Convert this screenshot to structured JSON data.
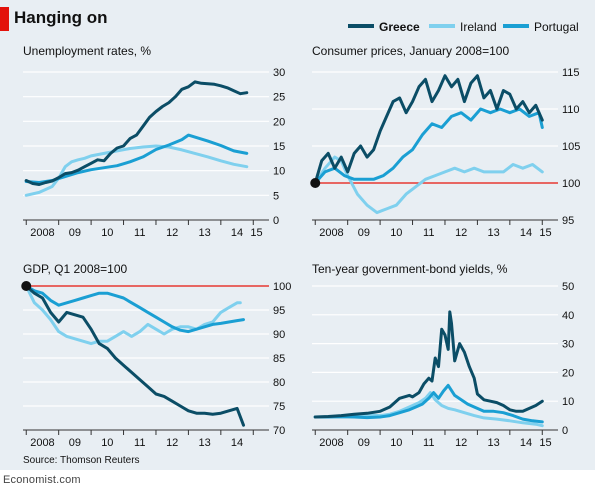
{
  "title": "Hanging on",
  "source": "Source: Thomson Reuters",
  "footer": "Economist.com",
  "colors": {
    "greece": "#0b4d66",
    "ireland": "#7fd0ee",
    "portugal": "#1a9fd3",
    "reference": "#e3120b",
    "red_tag": "#e3120b",
    "background": "#e8eef3"
  },
  "legend": [
    {
      "name": "Greece",
      "color": "#0b4d66",
      "bold": true
    },
    {
      "name": "Ireland",
      "color": "#7fd0ee",
      "bold": false
    },
    {
      "name": "Portugal",
      "color": "#1a9fd3",
      "bold": false
    }
  ],
  "chart_data": [
    {
      "type": "line",
      "title": "Unemployment rates, %",
      "xlim": [
        2007.9,
        2015.3
      ],
      "ylim": [
        0,
        30
      ],
      "yticks": [
        0,
        5,
        10,
        15,
        20,
        25,
        30
      ],
      "xticks": [
        {
          "x": 2008.5,
          "label": "2008"
        },
        {
          "x": 2009.5,
          "label": "09"
        },
        {
          "x": 2010.5,
          "label": "10"
        },
        {
          "x": 2011.5,
          "label": "11"
        },
        {
          "x": 2012.5,
          "label": "12"
        },
        {
          "x": 2013.5,
          "label": "13"
        },
        {
          "x": 2014.5,
          "label": "14"
        },
        {
          "x": 2015.1,
          "label": "15"
        }
      ],
      "grid": true,
      "series": [
        {
          "name": "Greece",
          "x": [
            2008.0,
            2008.2,
            2008.4,
            2008.6,
            2008.8,
            2009.0,
            2009.2,
            2009.4,
            2009.6,
            2009.8,
            2010.0,
            2010.2,
            2010.4,
            2010.6,
            2010.8,
            2011.0,
            2011.2,
            2011.4,
            2011.6,
            2011.8,
            2012.0,
            2012.2,
            2012.4,
            2012.6,
            2012.8,
            2013.0,
            2013.2,
            2013.4,
            2013.6,
            2013.8,
            2014.0,
            2014.2,
            2014.4,
            2014.6,
            2014.8
          ],
          "y": [
            8.0,
            7.4,
            7.2,
            7.6,
            7.9,
            8.6,
            9.4,
            9.6,
            10.1,
            10.8,
            11.5,
            12.2,
            12.0,
            13.5,
            14.6,
            15.0,
            16.5,
            17.2,
            19.0,
            20.8,
            22.0,
            23.0,
            23.8,
            25.0,
            26.5,
            27.0,
            28.0,
            27.7,
            27.6,
            27.5,
            27.2,
            26.8,
            26.2,
            25.6,
            25.8
          ]
        },
        {
          "name": "Ireland",
          "x": [
            2008.0,
            2008.4,
            2008.8,
            2009.0,
            2009.2,
            2009.4,
            2009.6,
            2009.8,
            2010.0,
            2010.4,
            2010.8,
            2011.2,
            2011.6,
            2012.0,
            2012.4,
            2012.8,
            2013.2,
            2013.6,
            2014.0,
            2014.4,
            2014.8
          ],
          "y": [
            5.0,
            5.6,
            6.8,
            8.5,
            10.8,
            11.8,
            12.2,
            12.5,
            13.0,
            13.5,
            14.0,
            14.5,
            14.8,
            15.0,
            14.8,
            14.2,
            13.5,
            12.8,
            12.0,
            11.3,
            10.8
          ]
        },
        {
          "name": "Portugal",
          "x": [
            2008.0,
            2008.4,
            2008.8,
            2009.2,
            2009.6,
            2010.0,
            2010.4,
            2010.8,
            2011.2,
            2011.6,
            2012.0,
            2012.4,
            2012.8,
            2013.0,
            2013.2,
            2013.6,
            2014.0,
            2014.4,
            2014.8
          ],
          "y": [
            7.8,
            7.6,
            8.0,
            8.8,
            9.6,
            10.2,
            10.6,
            11.0,
            11.8,
            12.8,
            14.3,
            15.2,
            16.3,
            17.2,
            16.8,
            16.0,
            15.1,
            14.0,
            13.5
          ]
        }
      ]
    },
    {
      "type": "line",
      "title": "Consumer prices, January 2008=100",
      "xlim": [
        2007.9,
        2015.3
      ],
      "ylim": [
        95,
        115
      ],
      "yticks": [
        95,
        100,
        105,
        110,
        115
      ],
      "xticks": [
        {
          "x": 2008.5,
          "label": "2008"
        },
        {
          "x": 2009.5,
          "label": "09"
        },
        {
          "x": 2010.5,
          "label": "10"
        },
        {
          "x": 2011.5,
          "label": "11"
        },
        {
          "x": 2012.5,
          "label": "12"
        },
        {
          "x": 2013.5,
          "label": "13"
        },
        {
          "x": 2014.5,
          "label": "14"
        },
        {
          "x": 2015.1,
          "label": "15"
        }
      ],
      "grid": true,
      "reference_line": 100,
      "start_marker": {
        "x": 2008.0,
        "y": 100
      },
      "series": [
        {
          "name": "Greece",
          "x": [
            2008.0,
            2008.2,
            2008.4,
            2008.6,
            2008.8,
            2009.0,
            2009.2,
            2009.4,
            2009.6,
            2009.8,
            2010.0,
            2010.2,
            2010.4,
            2010.6,
            2010.8,
            2011.0,
            2011.2,
            2011.4,
            2011.6,
            2011.8,
            2012.0,
            2012.2,
            2012.4,
            2012.6,
            2012.8,
            2013.0,
            2013.2,
            2013.4,
            2013.6,
            2013.8,
            2014.0,
            2014.2,
            2014.4,
            2014.6,
            2014.8,
            2015.0
          ],
          "y": [
            100,
            103,
            104,
            102,
            103.5,
            101.5,
            104,
            105,
            103.5,
            104.5,
            107,
            109,
            111,
            111.5,
            109.5,
            111,
            113,
            114,
            111,
            112.5,
            114.5,
            113,
            114,
            111,
            113.5,
            114.5,
            111.5,
            112.5,
            110,
            112.5,
            112,
            110,
            111,
            109.5,
            110.5,
            108.5
          ]
        },
        {
          "name": "Ireland",
          "x": [
            2008.0,
            2008.3,
            2008.6,
            2008.8,
            2009.0,
            2009.3,
            2009.6,
            2009.9,
            2010.2,
            2010.5,
            2010.8,
            2011.1,
            2011.4,
            2011.7,
            2012.0,
            2012.3,
            2012.6,
            2012.9,
            2013.2,
            2013.5,
            2013.8,
            2014.1,
            2014.4,
            2014.7,
            2015.0
          ],
          "y": [
            100,
            102,
            103.5,
            103,
            101,
            98.5,
            97,
            96,
            96.5,
            97,
            98.5,
            99.5,
            100.5,
            101,
            101.5,
            102,
            101.5,
            102,
            101.5,
            101.5,
            101.5,
            102.5,
            102,
            102.5,
            101.5
          ]
        },
        {
          "name": "Portugal",
          "x": [
            2008.0,
            2008.3,
            2008.6,
            2008.9,
            2009.2,
            2009.5,
            2009.8,
            2010.1,
            2010.4,
            2010.7,
            2011.0,
            2011.3,
            2011.6,
            2011.9,
            2012.2,
            2012.5,
            2012.8,
            2013.1,
            2013.4,
            2013.7,
            2014.0,
            2014.3,
            2014.6,
            2014.9,
            2015.0
          ],
          "y": [
            100,
            101.5,
            102,
            101,
            100.5,
            100.5,
            100.5,
            101,
            102,
            103.5,
            104.5,
            106.5,
            108,
            107.5,
            109,
            109.5,
            108.5,
            110,
            109.5,
            110,
            109.5,
            110,
            109,
            109.5,
            107.5
          ]
        }
      ]
    },
    {
      "type": "line",
      "title": "GDP, Q1 2008=100",
      "xlim": [
        2007.9,
        2015.3
      ],
      "ylim": [
        70,
        100
      ],
      "yticks": [
        70,
        75,
        80,
        85,
        90,
        95,
        100
      ],
      "xticks": [
        {
          "x": 2008.5,
          "label": "2008"
        },
        {
          "x": 2009.5,
          "label": "09"
        },
        {
          "x": 2010.5,
          "label": "10"
        },
        {
          "x": 2011.5,
          "label": "11"
        },
        {
          "x": 2012.5,
          "label": "12"
        },
        {
          "x": 2013.5,
          "label": "13"
        },
        {
          "x": 2014.5,
          "label": "14"
        }
      ],
      "grid": true,
      "reference_line": 100,
      "start_marker": {
        "x": 2008.0,
        "y": 100
      },
      "series": [
        {
          "name": "Greece",
          "x": [
            2008.0,
            2008.25,
            2008.5,
            2008.75,
            2009.0,
            2009.25,
            2009.5,
            2009.75,
            2010.0,
            2010.25,
            2010.5,
            2010.75,
            2011.0,
            2011.25,
            2011.5,
            2011.75,
            2012.0,
            2012.25,
            2012.5,
            2012.75,
            2013.0,
            2013.25,
            2013.5,
            2013.75,
            2014.0,
            2014.25,
            2014.5,
            2014.7
          ],
          "y": [
            100,
            98.5,
            97.5,
            94.5,
            92.5,
            94.5,
            94,
            93.5,
            91,
            88,
            87,
            85,
            83.5,
            82,
            80.5,
            79,
            77.5,
            77,
            76,
            75,
            74,
            73.5,
            73.5,
            73.3,
            73.5,
            74,
            74.5,
            71
          ]
        },
        {
          "name": "Ireland",
          "x": [
            2008.0,
            2008.25,
            2008.5,
            2008.75,
            2009.0,
            2009.25,
            2009.5,
            2009.75,
            2010.0,
            2010.25,
            2010.5,
            2010.75,
            2011.0,
            2011.25,
            2011.5,
            2011.75,
            2012.0,
            2012.25,
            2012.5,
            2012.75,
            2013.0,
            2013.25,
            2013.5,
            2013.75,
            2014.0,
            2014.25,
            2014.5,
            2014.6
          ],
          "y": [
            100,
            96.5,
            95,
            93,
            90.5,
            89.5,
            89,
            88.5,
            88,
            88.5,
            88.5,
            89.5,
            90.5,
            89.5,
            90.5,
            92,
            91,
            90,
            91,
            91.5,
            91.5,
            91,
            92,
            92.5,
            94.5,
            95.5,
            96.5,
            96.5
          ]
        },
        {
          "name": "Portugal",
          "x": [
            2008.0,
            2008.25,
            2008.5,
            2008.75,
            2009.0,
            2009.25,
            2009.5,
            2009.75,
            2010.0,
            2010.25,
            2010.5,
            2010.75,
            2011.0,
            2011.25,
            2011.5,
            2011.75,
            2012.0,
            2012.25,
            2012.5,
            2012.75,
            2013.0,
            2013.25,
            2013.5,
            2013.75,
            2014.0,
            2014.25,
            2014.5,
            2014.7
          ],
          "y": [
            100,
            99,
            98.5,
            97,
            96,
            96.5,
            97,
            97.5,
            98,
            98.5,
            98.5,
            98,
            97.5,
            96.5,
            95.5,
            94.5,
            93.5,
            92.5,
            91.5,
            90.8,
            90.5,
            91,
            91.5,
            92,
            92.2,
            92.5,
            92.8,
            93
          ]
        }
      ]
    },
    {
      "type": "line",
      "title": "Ten-year government-bond yields, %",
      "xlim": [
        2007.9,
        2015.3
      ],
      "ylim": [
        0,
        50
      ],
      "yticks": [
        0,
        10,
        20,
        30,
        40,
        50
      ],
      "xticks": [
        {
          "x": 2008.5,
          "label": "2008"
        },
        {
          "x": 2009.5,
          "label": "09"
        },
        {
          "x": 2010.5,
          "label": "10"
        },
        {
          "x": 2011.5,
          "label": "11"
        },
        {
          "x": 2012.5,
          "label": "12"
        },
        {
          "x": 2013.5,
          "label": "13"
        },
        {
          "x": 2014.5,
          "label": "14"
        },
        {
          "x": 2015.1,
          "label": "15"
        }
      ],
      "grid": true,
      "series": [
        {
          "name": "Greece",
          "x": [
            2008.0,
            2008.4,
            2008.8,
            2009.2,
            2009.6,
            2010.0,
            2010.3,
            2010.6,
            2010.9,
            2011.0,
            2011.2,
            2011.35,
            2011.5,
            2011.6,
            2011.7,
            2011.8,
            2011.9,
            2012.0,
            2012.1,
            2012.15,
            2012.2,
            2012.3,
            2012.45,
            2012.6,
            2012.75,
            2012.9,
            2013.0,
            2013.2,
            2013.4,
            2013.6,
            2013.8,
            2014.0,
            2014.2,
            2014.4,
            2014.6,
            2014.8,
            2015.0
          ],
          "y": [
            4.5,
            4.7,
            5.0,
            5.5,
            5.8,
            6.5,
            8.0,
            11.0,
            12.0,
            11.5,
            13.0,
            16.0,
            18.0,
            17.0,
            25.0,
            22.0,
            35.0,
            33.0,
            28.0,
            41.0,
            37.0,
            24.0,
            30.0,
            27.0,
            22.0,
            18.0,
            12.5,
            10.5,
            10.0,
            9.5,
            8.5,
            7.0,
            6.5,
            6.5,
            7.5,
            8.5,
            10.0
          ]
        },
        {
          "name": "Ireland",
          "x": [
            2008.0,
            2008.4,
            2008.8,
            2009.2,
            2009.6,
            2010.0,
            2010.3,
            2010.6,
            2010.9,
            2011.2,
            2011.4,
            2011.55,
            2011.7,
            2011.9,
            2012.1,
            2012.3,
            2012.6,
            2012.9,
            2013.2,
            2013.6,
            2014.0,
            2014.4,
            2014.8,
            2015.0
          ],
          "y": [
            4.5,
            4.6,
            4.7,
            5.0,
            5.2,
            5.0,
            5.5,
            6.5,
            8.0,
            9.5,
            11.0,
            13.0,
            10.5,
            8.5,
            7.5,
            7.0,
            6.0,
            5.0,
            4.2,
            3.8,
            3.2,
            2.5,
            2.0,
            1.5
          ]
        },
        {
          "name": "Portugal",
          "x": [
            2008.0,
            2008.4,
            2008.8,
            2009.2,
            2009.6,
            2010.0,
            2010.3,
            2010.6,
            2010.9,
            2011.1,
            2011.3,
            2011.5,
            2011.65,
            2011.8,
            2011.95,
            2012.1,
            2012.3,
            2012.5,
            2012.7,
            2012.9,
            2013.2,
            2013.5,
            2013.8,
            2014.1,
            2014.4,
            2014.7,
            2015.0
          ],
          "y": [
            4.5,
            4.5,
            4.6,
            4.5,
            4.3,
            4.5,
            5.0,
            6.0,
            7.0,
            8.0,
            9.0,
            11.0,
            13.0,
            11.0,
            13.5,
            15.5,
            12.0,
            10.5,
            9.0,
            8.0,
            6.5,
            6.5,
            6.0,
            5.0,
            3.8,
            3.2,
            2.8
          ]
        }
      ]
    }
  ]
}
